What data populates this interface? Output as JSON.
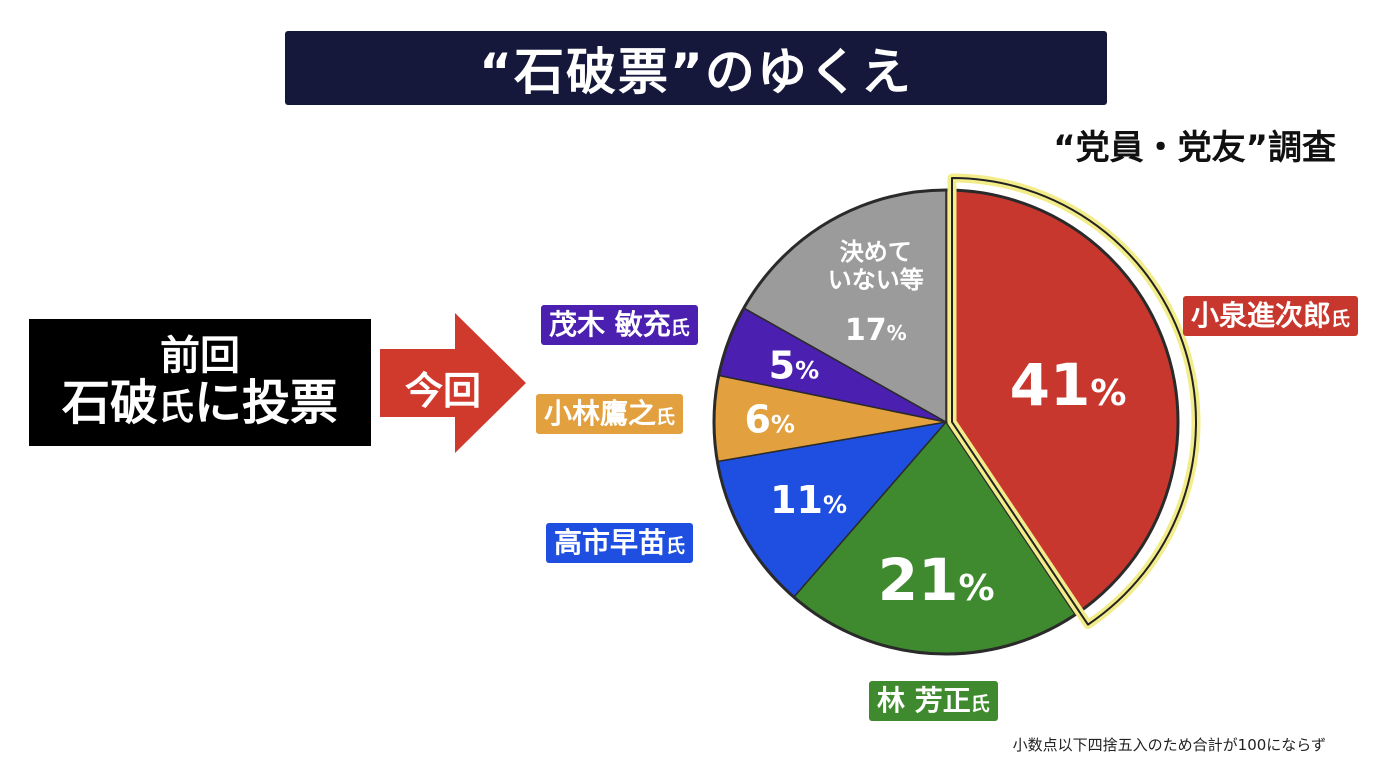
{
  "title": "“石破票”のゆくえ",
  "subtitle": "“党員・党友”調査",
  "previous": {
    "line1": "前回",
    "line2_main": "石破",
    "line2_small": "氏",
    "line2_end": "に投票"
  },
  "arrow_label": "今回",
  "note": "小数点以下四捨五入のため合計が100にならず",
  "chart_data": {
    "type": "pie",
    "title": "“石破票”のゆくえ",
    "subtitle": "“党員・党友”調査",
    "slices": [
      {
        "name": "小泉進次郎",
        "suffix": "氏",
        "value": 41,
        "label": "41",
        "color": "#c8372d"
      },
      {
        "name": "林 芳正",
        "suffix": "氏",
        "value": 21,
        "label": "21",
        "color": "#3f8a2e"
      },
      {
        "name": "高市早苗",
        "suffix": "氏",
        "value": 11,
        "label": "11",
        "color": "#1f4fe0"
      },
      {
        "name": "小林鷹之",
        "suffix": "氏",
        "value": 6,
        "label": "6",
        "color": "#e2a03e"
      },
      {
        "name": "茂木 敏充",
        "suffix": "氏",
        "value": 5,
        "label": "5",
        "color": "#4b1fb0"
      },
      {
        "name": "決めていない等",
        "name_lines": [
          "決めて",
          "いない等"
        ],
        "value": 17,
        "label": "17",
        "color": "#9b9b9b"
      }
    ],
    "unit": "%",
    "highlight": "小泉進次郎",
    "highlight_color": "#f3ec8a"
  }
}
